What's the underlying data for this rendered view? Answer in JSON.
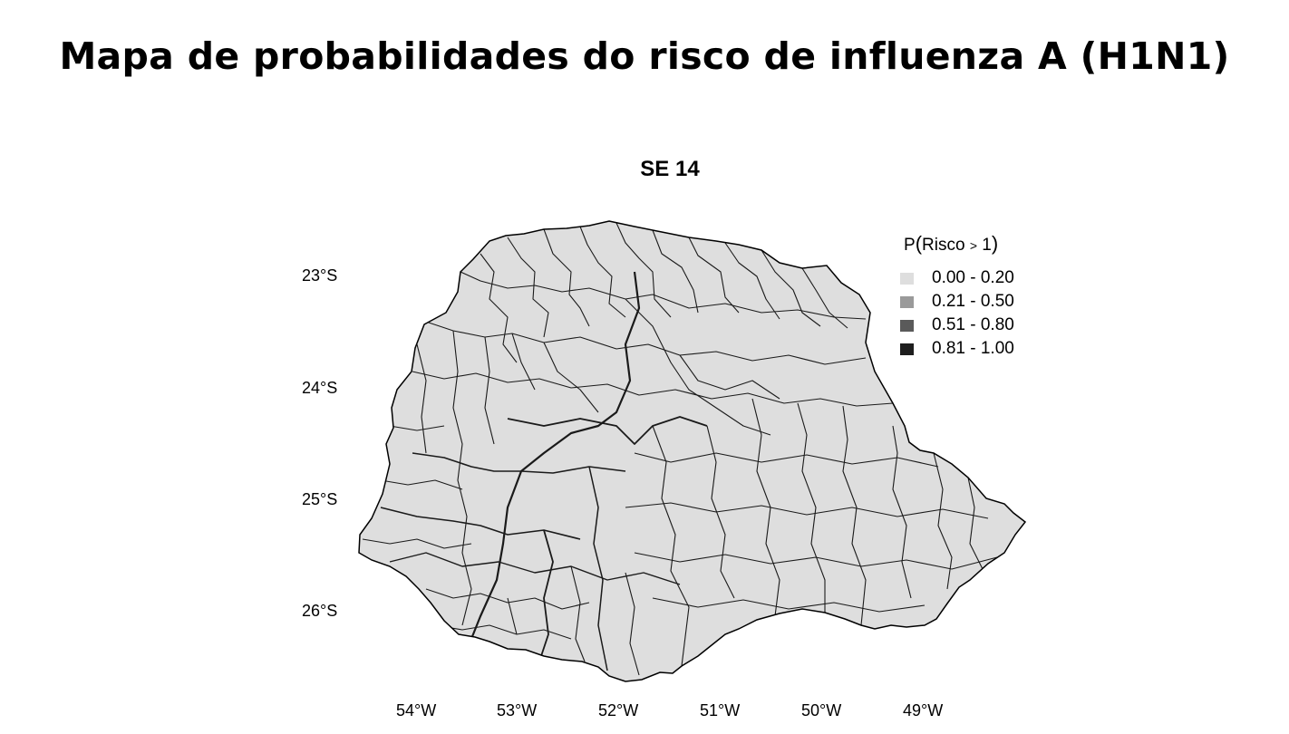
{
  "slide_title": "Mapa de probabilidades do risco de influenza A (H1N1)",
  "map": {
    "title": "SE 14",
    "region": "Paraná municipalities",
    "fill_color": "#dedede",
    "border_color": "#000000",
    "axes": {
      "latitude_labels": [
        "23°S",
        "24°S",
        "25°S",
        "26°S"
      ],
      "longitude_labels": [
        "54°W",
        "53°W",
        "52°W",
        "51°W",
        "50°W",
        "49°W"
      ]
    },
    "legend": {
      "title_prefix": "P",
      "title_open": "(",
      "title_var": "Risco",
      "title_op": ">",
      "title_val": "1",
      "title_close": ")",
      "items": [
        {
          "label": "0.00 - 0.20",
          "color": "#dedede"
        },
        {
          "label": "0.21 - 0.50",
          "color": "#9a9a9a"
        },
        {
          "label": "0.51 - 0.80",
          "color": "#5a5a5a"
        },
        {
          "label": "0.81 - 1.00",
          "color": "#1e1e1e"
        }
      ]
    }
  }
}
